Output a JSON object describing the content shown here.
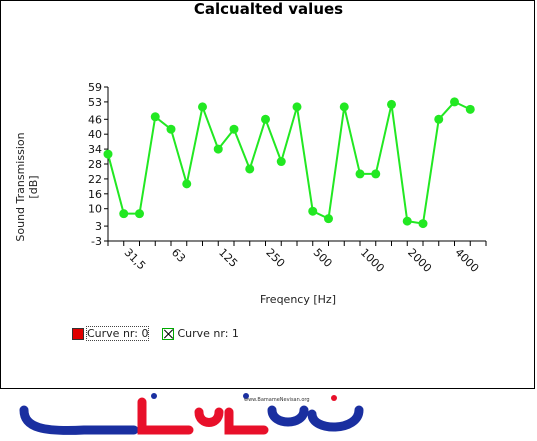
{
  "chart_data": {
    "type": "line",
    "title": "Calcualted values",
    "xlabel": "Freqency [Hz]",
    "ylabel": "Sound Transmission [dB]",
    "ylim": [
      -3,
      59
    ],
    "yticks": [
      -3,
      3,
      10,
      16,
      22,
      28,
      34,
      40,
      46,
      53,
      59
    ],
    "xticks": [
      {
        "index": 1,
        "label": "31,5"
      },
      {
        "index": 4,
        "label": "63"
      },
      {
        "index": 7,
        "label": "125"
      },
      {
        "index": 10,
        "label": "250"
      },
      {
        "index": 13,
        "label": "500"
      },
      {
        "index": 16,
        "label": "1000"
      },
      {
        "index": 19,
        "label": "2000"
      },
      {
        "index": 22,
        "label": "4000"
      }
    ],
    "grid": false,
    "legend_placement": "bottom-left",
    "series": [
      {
        "name": "Curve nr: 0",
        "color": "#e00000",
        "values": []
      },
      {
        "name": "Curve nr: 1",
        "color": "#22e822",
        "values": [
          32,
          8,
          8,
          47,
          42,
          20,
          51,
          34,
          42,
          26,
          46,
          29,
          51,
          9,
          6,
          51,
          24,
          24,
          52,
          5,
          4,
          46,
          53,
          50
        ]
      }
    ]
  },
  "legend": {
    "item0": "Curve nr: 0",
    "item1": "Curve nr: 1"
  },
  "logo": {
    "url_text": "www.BamameNevisan.org",
    "brand_colors": [
      "#1a2fa0",
      "#e8102a"
    ]
  }
}
